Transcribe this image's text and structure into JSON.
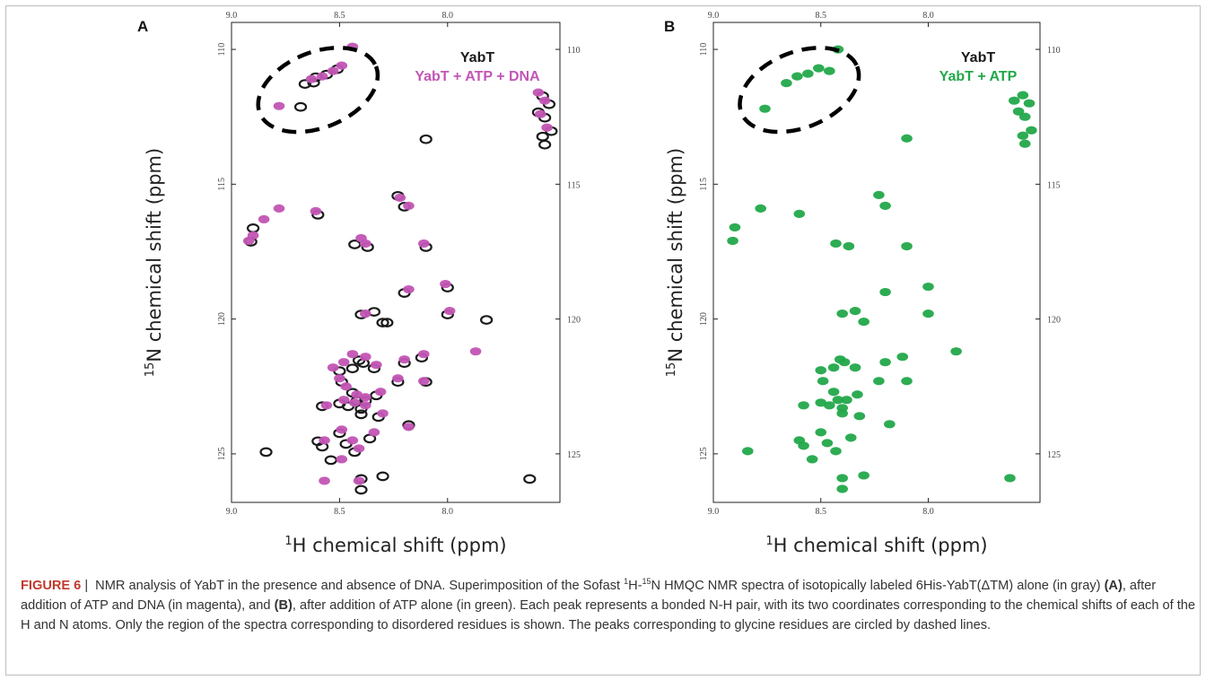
{
  "figure": {
    "label": "FIGURE 6",
    "separator": "|",
    "caption_parts": [
      {
        "text": " NMR analysis of YabT in the presence and absence of DNA. Superimposition of the Sofast ",
        "bold": false
      },
      {
        "text": "1",
        "sup": true
      },
      {
        "text": "H-",
        "bold": false
      },
      {
        "text": "15",
        "sup": true
      },
      {
        "text": "N HMQC NMR spectra of isotopically labeled 6His-YabT(ΔTM) alone (in gray) ",
        "bold": false
      },
      {
        "text": "(A)",
        "bold": true
      },
      {
        "text": ", after addition of ATP and DNA (in magenta), and ",
        "bold": false
      },
      {
        "text": "(B)",
        "bold": true
      },
      {
        "text": ", after addition of ATP alone (in green). Each peak represents a bonded N-H pair, with its two coordinates corresponding to the chemical shifts of each of the H and N atoms. Only the region of the spectra corresponding to disordered residues is shown. The peaks corresponding to glycine residues are circled by dashed lines.",
        "bold": false
      }
    ]
  },
  "colors": {
    "reference": "#1a1a1a",
    "magenta": "#c255b5",
    "green": "#22a84a",
    "dashed_circle": "#000000"
  },
  "chart_data": [
    {
      "type": "scatter",
      "panel_label": "A",
      "xlabel": "H chemical shift (ppm)",
      "xlabel_sup": "1",
      "ylabel": "N chemical shift (ppm)",
      "ylabel_sup": "15",
      "xlim": [
        9.0,
        7.48
      ],
      "ylim": [
        126.8,
        109.0
      ],
      "x_ticks": [
        "9.0",
        "8.5",
        "8.0"
      ],
      "y_ticks": [
        "110",
        "115",
        "120",
        "125"
      ],
      "legend": [
        {
          "label": "YabT",
          "color": "#1a1a1a"
        },
        {
          "label": "YabT + ATP + DNA",
          "color": "#c255b5"
        }
      ],
      "dashed_ellipse": {
        "center": [
          8.6,
          111.5
        ],
        "radii_ppm": [
          0.24,
          1.4
        ]
      },
      "series": [
        {
          "name": "YabT",
          "color": "#1a1a1a",
          "points": [
            [
              8.66,
              111.25
            ],
            [
              8.61,
              111.0
            ],
            [
              8.56,
              110.9
            ],
            [
              8.51,
              110.7
            ],
            [
              8.62,
              111.2
            ],
            [
              8.1,
              113.3
            ],
            [
              8.68,
              112.1
            ],
            [
              8.6,
              116.1
            ],
            [
              8.9,
              116.6
            ],
            [
              8.91,
              117.1
            ],
            [
              8.37,
              117.3
            ],
            [
              8.23,
              115.4
            ],
            [
              8.2,
              115.8
            ],
            [
              8.1,
              117.3
            ],
            [
              8.43,
              117.2
            ],
            [
              8.0,
              118.8
            ],
            [
              8.2,
              119.0
            ],
            [
              8.4,
              119.8
            ],
            [
              8.34,
              119.7
            ],
            [
              8.3,
              120.1
            ],
            [
              8.28,
              120.1
            ],
            [
              8.0,
              119.8
            ],
            [
              7.82,
              120.0
            ],
            [
              8.5,
              121.9
            ],
            [
              8.44,
              121.8
            ],
            [
              8.41,
              121.5
            ],
            [
              8.39,
              121.6
            ],
            [
              8.34,
              121.8
            ],
            [
              8.2,
              121.6
            ],
            [
              8.12,
              121.4
            ],
            [
              8.49,
              122.3
            ],
            [
              8.44,
              122.7
            ],
            [
              8.42,
              123.0
            ],
            [
              8.38,
              123.0
            ],
            [
              8.33,
              122.8
            ],
            [
              8.23,
              122.3
            ],
            [
              8.1,
              122.3
            ],
            [
              8.58,
              123.2
            ],
            [
              8.5,
              123.1
            ],
            [
              8.46,
              123.2
            ],
            [
              8.4,
              123.3
            ],
            [
              8.4,
              123.5
            ],
            [
              8.32,
              123.6
            ],
            [
              8.18,
              123.9
            ],
            [
              8.6,
              124.5
            ],
            [
              8.5,
              124.2
            ],
            [
              8.47,
              124.6
            ],
            [
              8.43,
              124.9
            ],
            [
              8.36,
              124.4
            ],
            [
              8.58,
              124.7
            ],
            [
              8.4,
              125.9
            ],
            [
              8.4,
              126.3
            ],
            [
              8.3,
              125.8
            ],
            [
              8.54,
              125.2
            ],
            [
              8.84,
              124.9
            ],
            [
              7.62,
              125.9
            ],
            [
              7.56,
              111.7
            ],
            [
              7.53,
              112.0
            ],
            [
              7.55,
              112.5
            ],
            [
              7.52,
              113.0
            ],
            [
              7.58,
              112.3
            ],
            [
              7.56,
              113.2
            ],
            [
              7.55,
              113.5
            ]
          ]
        },
        {
          "name": "YabT + ATP + DNA",
          "color": "#c255b5",
          "points": [
            [
              8.63,
              111.1
            ],
            [
              8.58,
              111.0
            ],
            [
              8.53,
              110.8
            ],
            [
              8.49,
              110.6
            ],
            [
              8.44,
              109.9
            ],
            [
              8.78,
              112.1
            ],
            [
              8.61,
              116.0
            ],
            [
              8.78,
              115.9
            ],
            [
              8.85,
              116.3
            ],
            [
              8.9,
              116.9
            ],
            [
              8.92,
              117.1
            ],
            [
              8.4,
              117.0
            ],
            [
              8.38,
              117.2
            ],
            [
              8.22,
              115.5
            ],
            [
              8.18,
              115.8
            ],
            [
              8.11,
              117.2
            ],
            [
              8.01,
              118.7
            ],
            [
              8.18,
              118.9
            ],
            [
              8.38,
              119.8
            ],
            [
              7.99,
              119.7
            ],
            [
              8.53,
              121.8
            ],
            [
              8.48,
              121.6
            ],
            [
              8.44,
              121.3
            ],
            [
              8.38,
              121.4
            ],
            [
              8.33,
              121.7
            ],
            [
              8.2,
              121.5
            ],
            [
              8.11,
              121.3
            ],
            [
              8.5,
              122.2
            ],
            [
              8.47,
              122.5
            ],
            [
              8.42,
              122.8
            ],
            [
              8.38,
              122.9
            ],
            [
              8.31,
              122.7
            ],
            [
              8.23,
              122.2
            ],
            [
              8.11,
              122.3
            ],
            [
              8.56,
              123.2
            ],
            [
              8.48,
              123.0
            ],
            [
              8.43,
              123.1
            ],
            [
              8.38,
              123.2
            ],
            [
              8.3,
              123.5
            ],
            [
              8.18,
              124.0
            ],
            [
              8.57,
              124.5
            ],
            [
              8.49,
              124.1
            ],
            [
              8.44,
              124.5
            ],
            [
              8.41,
              124.8
            ],
            [
              8.34,
              124.2
            ],
            [
              8.57,
              126.0
            ],
            [
              8.41,
              126.0
            ],
            [
              8.49,
              125.2
            ],
            [
              7.87,
              121.2
            ],
            [
              7.58,
              111.6
            ],
            [
              7.55,
              111.9
            ],
            [
              7.57,
              112.4
            ],
            [
              7.54,
              112.9
            ]
          ]
        }
      ]
    },
    {
      "type": "scatter",
      "panel_label": "B",
      "xlabel": "H chemical shift (ppm)",
      "xlabel_sup": "1",
      "ylabel": "N chemical shift (ppm)",
      "ylabel_sup": "15",
      "xlim": [
        9.0,
        7.48
      ],
      "ylim": [
        126.8,
        109.0
      ],
      "x_ticks": [
        "9.0",
        "8.5",
        "8.0"
      ],
      "y_ticks": [
        "110",
        "115",
        "120",
        "125"
      ],
      "legend": [
        {
          "label": "YabT",
          "color": "#1a1a1a"
        },
        {
          "label": "YabT + ATP",
          "color": "#22a84a"
        }
      ],
      "dashed_ellipse": {
        "center": [
          8.6,
          111.5
        ],
        "radii_ppm": [
          0.24,
          1.4
        ]
      },
      "series": [
        {
          "name": "YabT + ATP",
          "color": "#22a84a",
          "points": [
            [
              8.66,
              111.25
            ],
            [
              8.61,
              111.0
            ],
            [
              8.56,
              110.9
            ],
            [
              8.51,
              110.7
            ],
            [
              8.46,
              110.8
            ],
            [
              8.42,
              110.0
            ],
            [
              8.76,
              112.2
            ],
            [
              8.1,
              113.3
            ],
            [
              8.6,
              116.1
            ],
            [
              8.78,
              115.9
            ],
            [
              8.9,
              116.6
            ],
            [
              8.91,
              117.1
            ],
            [
              8.37,
              117.3
            ],
            [
              8.23,
              115.4
            ],
            [
              8.2,
              115.8
            ],
            [
              8.1,
              117.3
            ],
            [
              8.43,
              117.2
            ],
            [
              8.0,
              118.8
            ],
            [
              8.2,
              119.0
            ],
            [
              8.4,
              119.8
            ],
            [
              8.34,
              119.7
            ],
            [
              8.3,
              120.1
            ],
            [
              8.0,
              119.8
            ],
            [
              8.5,
              121.9
            ],
            [
              8.44,
              121.8
            ],
            [
              8.41,
              121.5
            ],
            [
              8.39,
              121.6
            ],
            [
              8.34,
              121.8
            ],
            [
              8.2,
              121.6
            ],
            [
              8.12,
              121.4
            ],
            [
              8.49,
              122.3
            ],
            [
              8.44,
              122.7
            ],
            [
              8.42,
              123.0
            ],
            [
              8.38,
              123.0
            ],
            [
              8.33,
              122.8
            ],
            [
              8.23,
              122.3
            ],
            [
              8.1,
              122.3
            ],
            [
              8.58,
              123.2
            ],
            [
              8.5,
              123.1
            ],
            [
              8.46,
              123.2
            ],
            [
              8.4,
              123.3
            ],
            [
              8.4,
              123.5
            ],
            [
              8.32,
              123.6
            ],
            [
              8.18,
              123.9
            ],
            [
              8.6,
              124.5
            ],
            [
              8.5,
              124.2
            ],
            [
              8.47,
              124.6
            ],
            [
              8.43,
              124.9
            ],
            [
              8.36,
              124.4
            ],
            [
              8.58,
              124.7
            ],
            [
              8.4,
              125.9
            ],
            [
              8.4,
              126.3
            ],
            [
              8.3,
              125.8
            ],
            [
              8.54,
              125.2
            ],
            [
              8.84,
              124.9
            ],
            [
              7.87,
              121.2
            ],
            [
              7.62,
              125.9
            ],
            [
              7.56,
              111.7
            ],
            [
              7.53,
              112.0
            ],
            [
              7.55,
              112.5
            ],
            [
              7.52,
              113.0
            ],
            [
              7.58,
              112.3
            ],
            [
              7.56,
              113.2
            ],
            [
              7.55,
              113.5
            ],
            [
              7.6,
              111.9
            ]
          ]
        }
      ]
    }
  ]
}
